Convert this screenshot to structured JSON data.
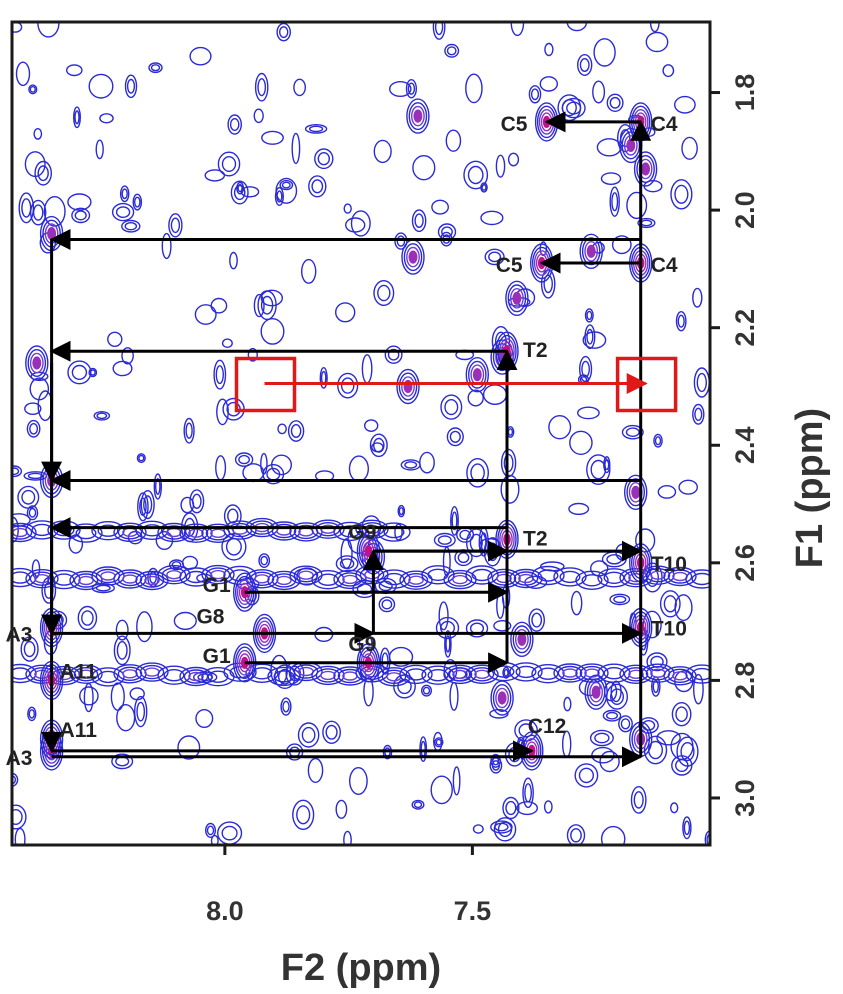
{
  "chart_data": {
    "type": "contour",
    "xlabel": "F2 (ppm)",
    "ylabel": "F1 (ppm)",
    "xlim": [
      8.43,
      7.02
    ],
    "ylim": [
      1.68,
      3.08
    ],
    "x_ticks": [
      {
        "value": 8.0,
        "label": "8.0"
      },
      {
        "value": 7.5,
        "label": "7.5"
      }
    ],
    "y_ticks": [
      {
        "value": 1.8,
        "label": "1.8"
      },
      {
        "value": 2.0,
        "label": "2.0"
      },
      {
        "value": 2.2,
        "label": "2.2"
      },
      {
        "value": 2.4,
        "label": "2.4"
      },
      {
        "value": 2.6,
        "label": "2.6"
      },
      {
        "value": 2.8,
        "label": "2.8"
      },
      {
        "value": 3.0,
        "label": "3.0"
      }
    ],
    "colors": {
      "contour_low": "#2b2bd6",
      "contour_mid": "#c0138a",
      "contour_high": "#f0a02c",
      "arrows": "#000000",
      "highlight": "#e01818"
    },
    "peaks": [
      {
        "x": 7.35,
        "y": 1.85,
        "label": "C5"
      },
      {
        "x": 7.16,
        "y": 1.85,
        "label": "C4"
      },
      {
        "x": 7.36,
        "y": 2.09,
        "label": "C5"
      },
      {
        "x": 7.16,
        "y": 2.09,
        "label": "C4"
      },
      {
        "x": 7.43,
        "y": 2.24,
        "label": "T2"
      },
      {
        "x": 7.43,
        "y": 2.56,
        "label": "T2"
      },
      {
        "x": 7.71,
        "y": 2.58,
        "label": "G9"
      },
      {
        "x": 7.71,
        "y": 2.77,
        "label": "G9"
      },
      {
        "x": 7.96,
        "y": 2.65,
        "label": "G1"
      },
      {
        "x": 7.96,
        "y": 2.77,
        "label": "G1"
      },
      {
        "x": 7.92,
        "y": 2.72,
        "label": "G8"
      },
      {
        "x": 7.16,
        "y": 2.6,
        "label": "T10"
      },
      {
        "x": 7.16,
        "y": 2.71,
        "label": "T10"
      },
      {
        "x": 8.35,
        "y": 2.71,
        "label": "A3"
      },
      {
        "x": 8.35,
        "y": 2.92,
        "label": "A3"
      },
      {
        "x": 8.35,
        "y": 2.8,
        "label": "A11"
      },
      {
        "x": 8.35,
        "y": 2.9,
        "label": "A11"
      },
      {
        "x": 7.38,
        "y": 2.92,
        "label": "C12"
      }
    ],
    "crosspeaks": [
      {
        "x": 8.38,
        "y": 2.26
      },
      {
        "x": 8.35,
        "y": 2.04
      },
      {
        "x": 8.35,
        "y": 2.46
      },
      {
        "x": 7.41,
        "y": 2.15
      },
      {
        "x": 7.44,
        "y": 2.25
      },
      {
        "x": 7.49,
        "y": 2.28
      },
      {
        "x": 7.63,
        "y": 2.3
      },
      {
        "x": 7.18,
        "y": 1.89
      },
      {
        "x": 7.15,
        "y": 1.93
      },
      {
        "x": 7.61,
        "y": 1.84
      },
      {
        "x": 7.62,
        "y": 2.08
      },
      {
        "x": 7.26,
        "y": 2.07
      },
      {
        "x": 7.25,
        "y": 2.82
      },
      {
        "x": 7.4,
        "y": 2.73
      },
      {
        "x": 7.17,
        "y": 2.48
      },
      {
        "x": 7.16,
        "y": 2.9
      },
      {
        "x": 7.44,
        "y": 2.83
      },
      {
        "x": 7.7,
        "y": 2.59
      }
    ],
    "ridges": [
      {
        "y": 2.625,
        "x_from": 8.43,
        "x_to": 7.02
      },
      {
        "y": 2.79,
        "x_from": 8.43,
        "x_to": 7.02
      },
      {
        "y": 2.545,
        "x_from": 8.43,
        "x_to": 7.65
      }
    ],
    "connections": [
      {
        "from": [
          7.16,
          1.85
        ],
        "to": [
          7.35,
          1.85
        ]
      },
      {
        "from": [
          7.16,
          2.09
        ],
        "to": [
          7.36,
          2.09
        ]
      },
      {
        "from": [
          7.16,
          2.05
        ],
        "to": [
          8.35,
          2.05
        ]
      },
      {
        "from": [
          7.43,
          2.24
        ],
        "to": [
          8.35,
          2.24
        ]
      },
      {
        "from": [
          7.16,
          2.46
        ],
        "to": [
          8.35,
          2.46
        ]
      },
      {
        "from": [
          7.43,
          2.54
        ],
        "to": [
          8.35,
          2.54
        ]
      },
      {
        "from": [
          7.7,
          2.58
        ],
        "to": [
          7.43,
          2.58
        ]
      },
      {
        "from": [
          7.96,
          2.65
        ],
        "to": [
          7.43,
          2.65
        ]
      },
      {
        "from": [
          7.96,
          2.77
        ],
        "to": [
          7.43,
          2.77
        ]
      },
      {
        "from": [
          8.35,
          2.72
        ],
        "to": [
          7.7,
          2.72
        ]
      },
      {
        "from": [
          7.7,
          2.72
        ],
        "to": [
          7.16,
          2.72
        ]
      },
      {
        "from": [
          7.7,
          2.58
        ],
        "to": [
          7.16,
          2.58
        ]
      },
      {
        "from": [
          8.35,
          2.92
        ],
        "to": [
          7.38,
          2.92
        ]
      },
      {
        "from": [
          8.35,
          2.93
        ],
        "to": [
          7.16,
          2.93
        ]
      },
      {
        "from": [
          7.16,
          2.93
        ],
        "to": [
          7.16,
          1.85
        ]
      },
      {
        "from": [
          7.43,
          2.77
        ],
        "to": [
          7.43,
          2.24
        ]
      },
      {
        "from": [
          7.7,
          2.72
        ],
        "to": [
          7.7,
          2.58
        ]
      },
      {
        "from": [
          8.35,
          2.05
        ],
        "to": [
          8.35,
          2.46
        ]
      },
      {
        "from": [
          8.35,
          2.26
        ],
        "to": [
          8.35,
          2.72
        ]
      },
      {
        "from": [
          8.35,
          2.54
        ],
        "to": [
          8.35,
          2.92
        ]
      }
    ],
    "highlight": {
      "boxes": [
        {
          "x": 7.92,
          "y": 2.3
        },
        {
          "x": 7.15,
          "y": 2.3
        }
      ],
      "arrow": {
        "from": [
          7.92,
          2.295
        ],
        "to": [
          7.15,
          2.295
        ]
      }
    }
  }
}
